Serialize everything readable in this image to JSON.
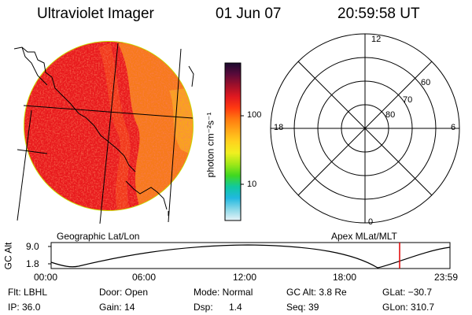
{
  "header": {
    "instrument": "Ultraviolet Imager",
    "date": "01 Jun 07",
    "time": "20:59:58 UT"
  },
  "colorbar": {
    "unit_label": "photon cm⁻²s⁻¹",
    "tick_labels": [
      "100",
      "10"
    ],
    "colors_top_to_bottom": [
      "#1a0a2e",
      "#5a0a3a",
      "#a0102a",
      "#e01820",
      "#ff3a10",
      "#ff7a10",
      "#ffa818",
      "#ffd21e",
      "#f0f020",
      "#a0e818",
      "#40d820",
      "#10c8a0",
      "#20b8e0",
      "#8ad8e8",
      "#e8f4f8"
    ]
  },
  "left_panel": {
    "caption": "Geographic Lat/Lon",
    "image_colors": [
      "#e8181c",
      "#f2401a",
      "#f77a1a",
      "#f9a41e"
    ],
    "limb_color": "#c8e000"
  },
  "right_panel": {
    "caption": "Apex MLat/MLT",
    "mlt_labels": {
      "top": "12",
      "left": "18",
      "right": "6",
      "bottom": "0"
    },
    "lat_labels": [
      "60",
      "70",
      "80"
    ]
  },
  "altitude_strip": {
    "ylabel": "GC Alt",
    "y_ticks": [
      "9.0",
      "1.8"
    ],
    "x_ticks": [
      "00:00",
      "06:00",
      "12:00",
      "18:00",
      "23:59"
    ],
    "marker_color": "#e00000"
  },
  "footer": {
    "flt": "Flt: LBHL",
    "ip": "IP: 36.0",
    "door": "Door: Open",
    "gain": "Gain: 14",
    "mode": "Mode: Normal",
    "dsp_label": "Dsp:",
    "dsp_value": "1.4",
    "gc_alt": "GC Alt: 3.8 Re",
    "seq": "Seq: 39",
    "glat": "GLat: −30.7",
    "glon": "GLon: 310.7"
  }
}
